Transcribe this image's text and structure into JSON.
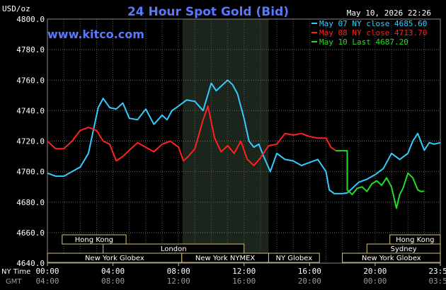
{
  "chart_data": {
    "type": "line",
    "title": "24 Hour Spot Gold (Bid)",
    "brand": "www.kitco.com",
    "timestamp": "May 10, 2026 22:26",
    "y_axis_unit": "USD/oz",
    "ylim": [
      4640,
      4800
    ],
    "y_ticks": [
      "4800.0",
      "4780.0",
      "4760.0",
      "4740.0",
      "4720.0",
      "4700.0",
      "4680.0",
      "4660.0",
      "4640.0"
    ],
    "x_axis_ny_label": "NY Time",
    "x_axis_gmt_label": "GMT",
    "x_ticks_ny": [
      "00:00",
      "04:00",
      "08:00",
      "12:00",
      "16:00",
      "20:00",
      "23:59"
    ],
    "x_ticks_gmt": [
      "04:00",
      "08:00",
      "12:00",
      "16:00",
      "20:00",
      "00:00",
      "03:59"
    ],
    "x_tick_hours": [
      0,
      4,
      8,
      12,
      16,
      20,
      23.98
    ],
    "xlim_hours": [
      0,
      23.98
    ],
    "grid": true,
    "legend_position": "top-right",
    "highlight_band_hours": [
      8.25,
      13.5
    ],
    "series": [
      {
        "name": "May 07 NY close 4685.60",
        "color": "#33ccff",
        "x": [
          0,
          0.5,
          1,
          1.5,
          2,
          2.5,
          2.8,
          3.1,
          3.4,
          3.8,
          4.2,
          4.6,
          5,
          5.5,
          6,
          6.5,
          7,
          7.3,
          7.6,
          8,
          8.5,
          9,
          9.5,
          10,
          10.3,
          10.6,
          11,
          11.3,
          11.6,
          12,
          12.3,
          12.6,
          12.9,
          13.2,
          13.6,
          14,
          14.5,
          15,
          15.5,
          16,
          16.5,
          17,
          17.2,
          17.5,
          18,
          18.3,
          18.6,
          19,
          19.5,
          20,
          20.5,
          21,
          21.5,
          22,
          22.3,
          22.6,
          23,
          23.3,
          23.6,
          23.98
        ],
        "y": [
          4699,
          4697,
          4697,
          4700,
          4703,
          4712,
          4727,
          4742,
          4748,
          4742,
          4741,
          4745,
          4735,
          4734,
          4741,
          4731,
          4737,
          4734,
          4740,
          4743,
          4747,
          4746,
          4740,
          4758,
          4753,
          4756,
          4760,
          4757,
          4751,
          4735,
          4720,
          4716,
          4718,
          4710,
          4700,
          4712,
          4708,
          4707,
          4704,
          4706,
          4708,
          4700,
          4688,
          4685.6,
          4685.6,
          4686,
          4689,
          4693,
          4695,
          4698,
          4702,
          4712,
          4708,
          4712,
          4720,
          4725,
          4714,
          4719,
          4718,
          4719
        ]
      },
      {
        "name": "May 08 NY close 4713.70",
        "color": "#ff2020",
        "x": [
          0,
          0.5,
          1,
          1.5,
          2,
          2.5,
          3,
          3.4,
          3.8,
          4.2,
          4.6,
          5,
          5.5,
          6,
          6.5,
          7,
          7.5,
          8,
          8.3,
          8.6,
          9,
          9.5,
          9.8,
          10.2,
          10.6,
          11,
          11.4,
          11.8,
          12.2,
          12.6,
          13,
          13.5,
          14,
          14.5,
          15,
          15.5,
          16,
          16.5,
          17,
          17.3,
          17.6
        ],
        "y": [
          4720,
          4715,
          4715,
          4720,
          4727,
          4729,
          4727,
          4720,
          4718,
          4707,
          4710,
          4714,
          4719,
          4716,
          4713,
          4718,
          4720,
          4716,
          4707,
          4710,
          4715,
          4734,
          4743,
          4722,
          4713,
          4717,
          4712,
          4720,
          4708,
          4704,
          4709,
          4717,
          4718,
          4725,
          4724,
          4725,
          4723,
          4722,
          4722,
          4716,
          4713.7
        ]
      },
      {
        "name": "May 10 Last 4687.20",
        "color": "#22dd22",
        "x": [
          17.6,
          18.3,
          18.3,
          18.6,
          18.9,
          19.2,
          19.5,
          19.8,
          20.1,
          20.4,
          20.7,
          21,
          21.3,
          21.5,
          21.7,
          22,
          22.3,
          22.6,
          22.8,
          23
        ],
        "y": [
          4713.7,
          4713.7,
          4688,
          4685,
          4689,
          4690,
          4687,
          4692,
          4694,
          4691,
          4696,
          4690,
          4676,
          4685,
          4689,
          4699,
          4696,
          4688,
          4687,
          4687.2
        ]
      }
    ],
    "sessions": [
      {
        "label": "Hong Kong",
        "start": 0.9,
        "end": 4.8,
        "row": 0
      },
      {
        "label": "London",
        "start": 3.4,
        "end": 12.0,
        "row": 1
      },
      {
        "label": "New York Globex",
        "start": 0.0,
        "end": 8.2,
        "row": 2
      },
      {
        "label": "New York NYMEX",
        "start": 8.2,
        "end": 13.5,
        "row": 2
      },
      {
        "label": "NY Globex",
        "start": 13.5,
        "end": 16.6,
        "row": 2
      },
      {
        "label": "Hong Kong",
        "start": 20.9,
        "end": 23.98,
        "row": 0
      },
      {
        "label": "Sydney",
        "start": 19.5,
        "end": 23.98,
        "row": 1
      },
      {
        "label": "New York Globex",
        "start": 18.0,
        "end": 23.98,
        "row": 2
      }
    ]
  }
}
